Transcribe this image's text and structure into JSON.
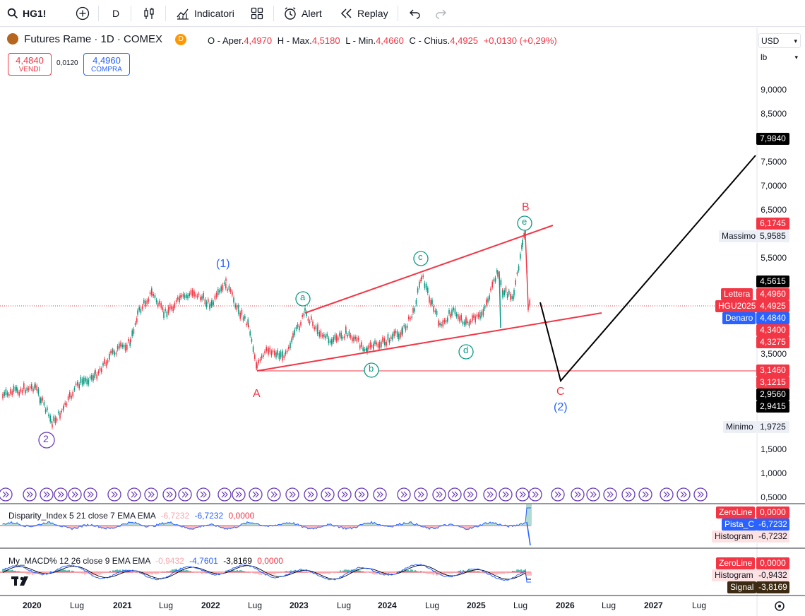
{
  "toolbar": {
    "symbol": "HG1!",
    "interval": "D",
    "indicators_label": "Indicatori",
    "alert_label": "Alert",
    "replay_label": "Replay"
  },
  "legend": {
    "title": "Futures Rame · 1D · COMEX",
    "badge": "D",
    "open_k": "O - Aper.",
    "open_v": "4,4970",
    "high_k": "H - Max.",
    "high_v": "4,5180",
    "low_k": "L - Min.",
    "low_v": "4,4660",
    "close_k": "C - Chius.",
    "close_v": "4,4925",
    "change_v": "+0,0130 (+0,29%)"
  },
  "trade": {
    "sell_price": "4,4840",
    "sell_label": "VENDI",
    "spread": "0,0120",
    "buy_price": "4,4960",
    "buy_label": "COMPRA"
  },
  "axis": {
    "currency": "USD",
    "unit": "lb",
    "ticks": [
      "9,0000",
      "8,5000",
      "7,5000",
      "7,0000",
      "6,5000",
      "5,5000",
      "3,5000",
      "1,5000",
      "1,0000",
      "0,5000"
    ],
    "x_ticks": [
      {
        "label": "2020",
        "bold": true
      },
      {
        "label": "Lug",
        "bold": false
      },
      {
        "label": "2021",
        "bold": true
      },
      {
        "label": "Lug",
        "bold": false
      },
      {
        "label": "2022",
        "bold": true
      },
      {
        "label": "Lug",
        "bold": false
      },
      {
        "label": "2023",
        "bold": true
      },
      {
        "label": "Lug",
        "bold": false
      },
      {
        "label": "2024",
        "bold": true
      },
      {
        "label": "Lug",
        "bold": false
      },
      {
        "label": "2025",
        "bold": true
      },
      {
        "label": "Lug",
        "bold": false
      },
      {
        "label": "2026",
        "bold": true
      },
      {
        "label": "Lug",
        "bold": false
      },
      {
        "label": "2027",
        "bold": true
      },
      {
        "label": "Lug",
        "bold": false
      }
    ]
  },
  "price_labels": {
    "p7984": "7,9840",
    "p6174": "6,1745",
    "massimo_k": "Massimo",
    "massimo_v": "5,9585",
    "p4561": "4,5615",
    "lettera_k": "Lettera",
    "lettera_v": "4,4960",
    "hgu_k": "HGU2025",
    "hgu_v": "4,4925",
    "denaro_k": "Denaro",
    "denaro_v": "4,4840",
    "p4340": "4,3400",
    "p4327": "4,3275",
    "p3146": "3,1460",
    "p3121": "3,1215",
    "p2956": "2,9560",
    "p2941": "2,9415",
    "minimo_k": "Minimo",
    "minimo_v": "1,9725"
  },
  "waves": {
    "w1": "(1)",
    "w2": "(2)",
    "w2_circle": "2",
    "A": "A",
    "B": "B",
    "C": "C",
    "a": "a",
    "b": "b",
    "c": "c",
    "d": "d",
    "e": "e"
  },
  "disparity": {
    "name": "Disparity_Index 5 21 close 7 EMA EMA",
    "v1": "-6,7232",
    "v2": "-6,7232",
    "v3": "0,0000",
    "zero_k": "ZeroLine",
    "zero_v": "0,0000",
    "pista_k": "Pista_C",
    "pista_v": "-6,7232",
    "hist_k": "Histogram",
    "hist_v": "-6,7232"
  },
  "macd": {
    "name": "My_MACD% 12 26 close 9 EMA EMA",
    "v1": "-0,9432",
    "v2": "-4,7601",
    "v3": "-3,8169",
    "v4": "0,0000",
    "zero_k": "ZeroLine",
    "zero_v": "0,0000",
    "hist_k": "Histogram",
    "hist_v": "-0,9432",
    "signal_k": "Signal",
    "signal_v": "-3,8169"
  },
  "colors": {
    "red": "#f23645",
    "blue": "#2962ff",
    "green": "#089981",
    "purple": "#673ab7",
    "black": "#000000"
  }
}
